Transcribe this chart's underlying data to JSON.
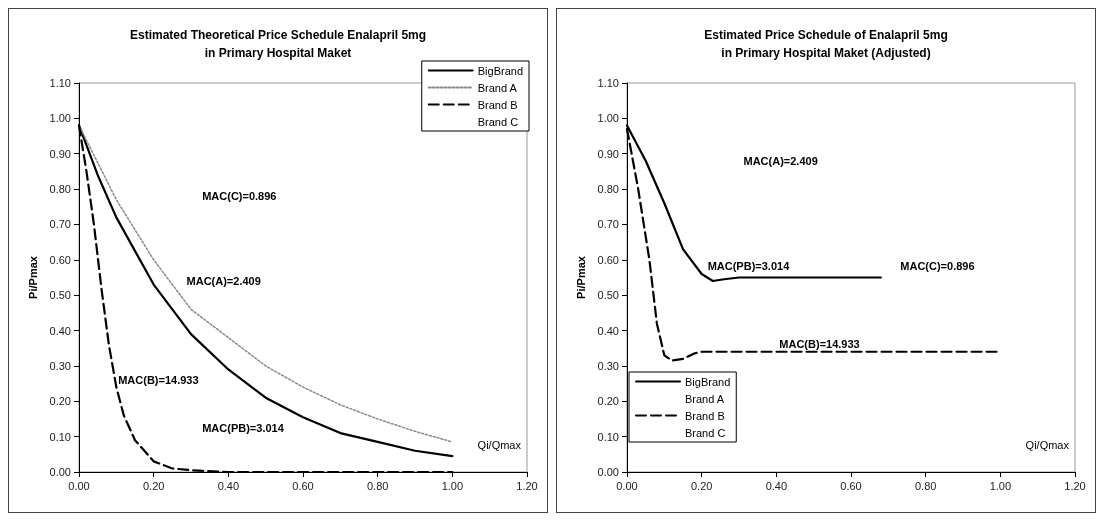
{
  "chart_data": [
    {
      "type": "line",
      "title": "Estimated Theoretical Price Schedule Enalapril 5mg\nin Primary Hospital Maket",
      "xlabel": "Qi/Qmax",
      "ylabel": "Pi/Pmax",
      "xlim": [
        0,
        1.2
      ],
      "xticks": [
        {
          "value": 0,
          "label": "0.00"
        },
        {
          "value": 0.2,
          "label": "0.20"
        },
        {
          "value": 0.4,
          "label": "0.40"
        },
        {
          "value": 0.6,
          "label": "0.60"
        },
        {
          "value": 0.8,
          "label": "0.80"
        },
        {
          "value": 1.0,
          "label": "1.00"
        },
        {
          "value": 1.2,
          "label": "1.20"
        }
      ],
      "ylim": [
        0,
        1.1
      ],
      "yticks": [
        {
          "value": 0,
          "label": "0.00"
        },
        {
          "value": 0.1,
          "label": "0.10"
        },
        {
          "value": 0.2,
          "label": "0.20"
        },
        {
          "value": 0.3,
          "label": "0.30"
        },
        {
          "value": 0.4,
          "label": "0.40"
        },
        {
          "value": 0.5,
          "label": "0.50"
        },
        {
          "value": 0.6,
          "label": "0.60"
        },
        {
          "value": 0.7,
          "label": "0.70"
        },
        {
          "value": 0.8,
          "label": "0.80"
        },
        {
          "value": 0.9,
          "label": "0.90"
        },
        {
          "value": 1.0,
          "label": "1.00"
        },
        {
          "value": 1.1,
          "label": "1.10"
        }
      ],
      "grid": false,
      "legend": "top right",
      "marker": "none",
      "series": [
        {
          "name": "BigBrand",
          "color": "#000000",
          "line_style": "solid",
          "x": [
            0,
            0.05,
            0.1,
            0.2,
            0.3,
            0.4,
            0.5,
            0.6,
            0.7,
            0.8,
            0.9,
            1.0
          ],
          "values": [
            0.98,
            0.84,
            0.72,
            0.53,
            0.39,
            0.29,
            0.21,
            0.155,
            0.11,
            0.085,
            0.06,
            0.045
          ]
        },
        {
          "name": "Brand A",
          "color": "#888888",
          "line_style": "dotted",
          "x": [
            0,
            0.1,
            0.2,
            0.3,
            0.4,
            0.5,
            0.6,
            0.7,
            0.8,
            0.9,
            1.0
          ],
          "values": [
            0.98,
            0.77,
            0.6,
            0.46,
            0.38,
            0.3,
            0.24,
            0.19,
            0.15,
            0.115,
            0.085
          ]
        },
        {
          "name": "Brand B",
          "color": "#000000",
          "line_style": "dashed",
          "x": [
            0,
            0.02,
            0.04,
            0.06,
            0.08,
            0.1,
            0.12,
            0.15,
            0.2,
            0.25,
            0.3,
            0.4,
            0.6,
            0.8,
            1.0
          ],
          "values": [
            0.98,
            0.85,
            0.7,
            0.52,
            0.36,
            0.24,
            0.16,
            0.09,
            0.03,
            0.01,
            0.005,
            0,
            0,
            0,
            0
          ]
        },
        {
          "name": "Brand C"
        }
      ],
      "annotations": [
        "MAC(C)=0.896",
        "MAC(A)=2.409",
        {
          "text": "MAC(B)=14.933",
          "x": 0.105,
          "y": 0.26
        },
        "MAC(PB)=3.014"
      ]
    },
    {
      "type": "line",
      "title": "Estimated Price Schedule of Enalapril 5mg\nin Primary Hospital Maket (Adjusted)",
      "xlabel": "Qi/Qmax",
      "ylabel": "Pi/Pmax",
      "xlim": [
        0,
        1.2
      ],
      "xticks": [
        {
          "value": 0,
          "label": "0.00"
        },
        {
          "value": 0.2,
          "label": "0.20"
        },
        {
          "value": 0.4,
          "label": "0.40"
        },
        {
          "value": 0.6,
          "label": "0.60"
        },
        {
          "value": 0.8,
          "label": "0.80"
        },
        {
          "value": 1.0,
          "label": "1.00"
        },
        {
          "value": 1.2,
          "label": "1.20"
        }
      ],
      "ylim": [
        0,
        1.1
      ],
      "yticks": [
        {
          "value": 0,
          "label": "0.00"
        },
        {
          "value": 0.1,
          "label": "0.10"
        },
        {
          "value": 0.2,
          "label": "0.20"
        },
        {
          "value": 0.3,
          "label": "0.30"
        },
        {
          "value": 0.4,
          "label": "0.40"
        },
        {
          "value": 0.5,
          "label": "0.50"
        },
        {
          "value": 0.6,
          "label": "0.60"
        },
        {
          "value": 0.7,
          "label": "0.70"
        },
        {
          "value": 0.8,
          "label": "0.80"
        },
        {
          "value": 0.9,
          "label": "0.90"
        },
        {
          "value": 1.0,
          "label": "1.00"
        },
        {
          "value": 1.1,
          "label": "1.10"
        }
      ],
      "grid": false,
      "legend": "bottom left",
      "marker": "none",
      "series": [
        {
          "name": "BigBrand",
          "color": "#000000",
          "line_style": "solid",
          "x": [
            0,
            0.05,
            0.1,
            0.15,
            0.2,
            0.23,
            0.26,
            0.3,
            0.4,
            0.5,
            0.6,
            0.68
          ],
          "values": [
            0.98,
            0.88,
            0.76,
            0.63,
            0.56,
            0.54,
            0.545,
            0.55,
            0.55,
            0.55,
            0.55,
            0.55
          ]
        },
        {
          "name": "Brand A"
        },
        {
          "name": "Brand B",
          "color": "#000000",
          "line_style": "dashed",
          "x": [
            0,
            0.03,
            0.06,
            0.08,
            0.1,
            0.12,
            0.15,
            0.18,
            0.2,
            0.4,
            0.6,
            0.8,
            1.0
          ],
          "values": [
            0.97,
            0.8,
            0.6,
            0.42,
            0.33,
            0.315,
            0.32,
            0.335,
            0.34,
            0.34,
            0.34,
            0.34,
            0.34
          ]
        },
        {
          "name": "Brand C"
        }
      ],
      "annotations": [
        "MAC(A)=2.409",
        "MAC(PB)=3.014",
        "MAC(C)=0.896",
        "MAC(B)=14.933"
      ]
    }
  ]
}
